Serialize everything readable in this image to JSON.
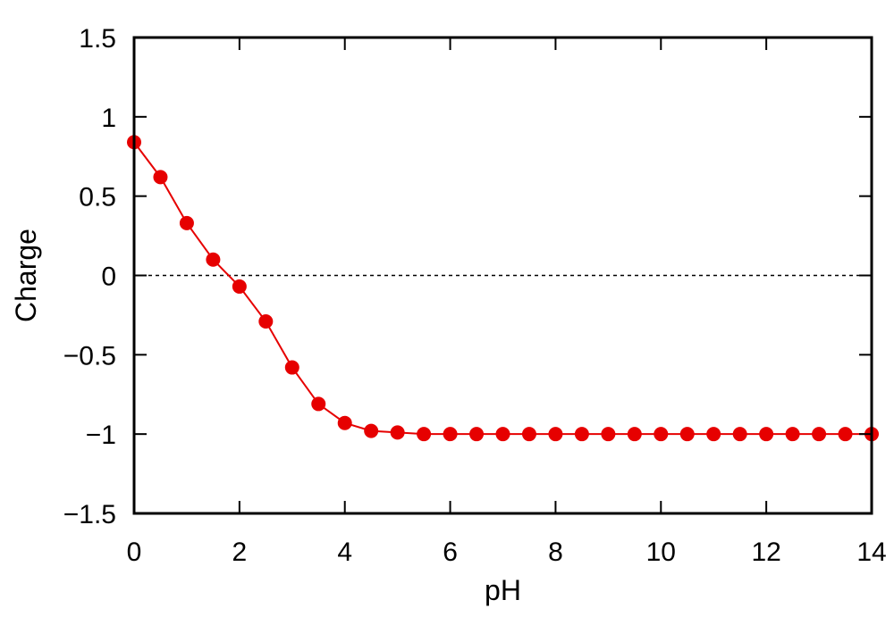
{
  "chart_data": {
    "type": "line",
    "title": "",
    "xlabel": "pH",
    "ylabel": "Charge",
    "xlim": [
      0,
      14
    ],
    "ylim": [
      -1.5,
      1.5
    ],
    "x_ticks": [
      0,
      2,
      4,
      6,
      8,
      10,
      12,
      14
    ],
    "x_tick_labels": [
      "0",
      "2",
      "4",
      "6",
      "8",
      "10",
      "12",
      "14"
    ],
    "y_ticks": [
      1.5,
      1,
      0.5,
      0,
      -0.5,
      -1,
      -1.5
    ],
    "y_tick_labels": [
      "1.5",
      "1",
      "0.5",
      "0",
      "−0.5",
      "−1",
      "−1.5"
    ],
    "grid": false,
    "reference_line": {
      "y": 0,
      "style": "dashed"
    },
    "series": [
      {
        "color": "#e60000",
        "marker": "circle",
        "x": [
          0,
          0.5,
          1,
          1.5,
          2,
          2.5,
          3,
          3.5,
          4,
          4.5,
          5,
          5.5,
          6,
          6.5,
          7,
          7.5,
          8,
          8.5,
          9,
          9.5,
          10,
          10.5,
          11,
          11.5,
          12,
          12.5,
          13,
          13.5,
          14
        ],
        "values": [
          0.84,
          0.62,
          0.33,
          0.1,
          -0.07,
          -0.29,
          -0.58,
          -0.81,
          -0.93,
          -0.98,
          -0.99,
          -1.0,
          -1.0,
          -1.0,
          -1.0,
          -1.0,
          -1.0,
          -1.0,
          -1.0,
          -1.0,
          -1.0,
          -1.0,
          -1.0,
          -1.0,
          -1.0,
          -1.0,
          -1.0,
          -1.0,
          -1.0
        ]
      }
    ]
  }
}
